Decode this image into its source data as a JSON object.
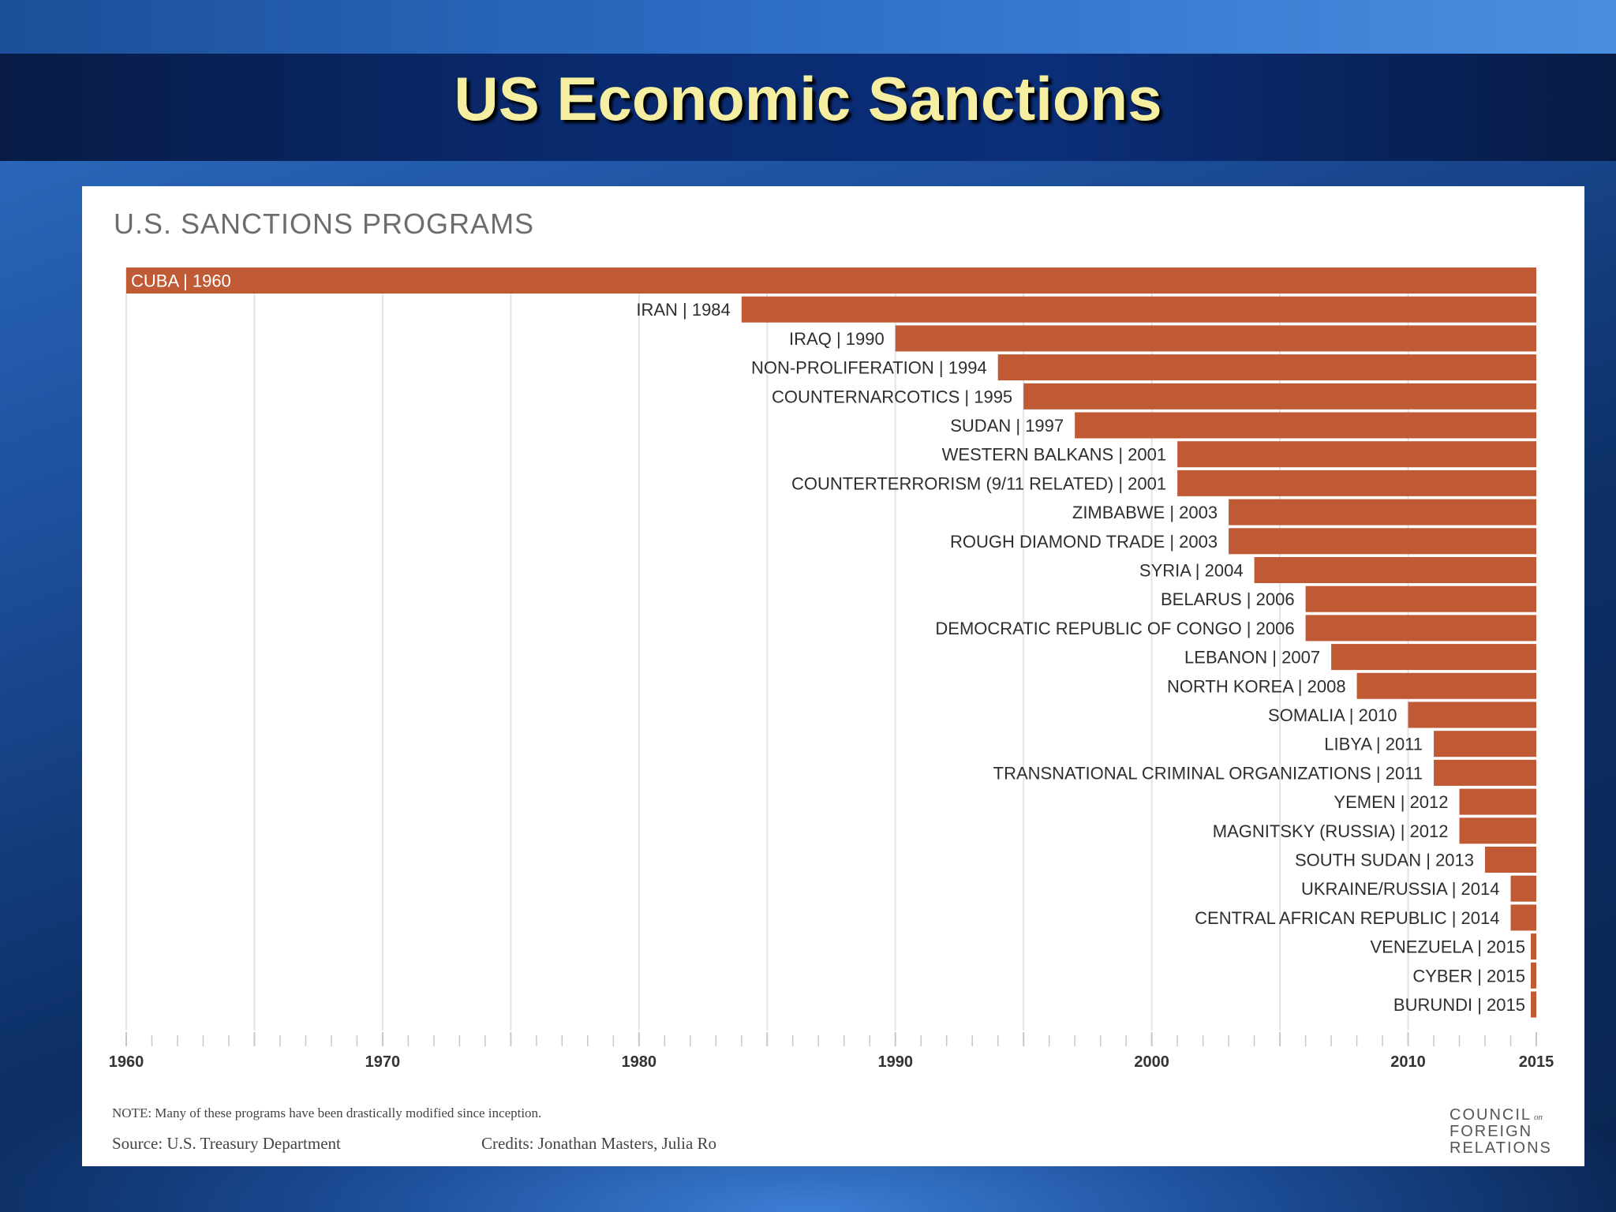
{
  "slide": {
    "title": "US Economic Sanctions"
  },
  "colors": {
    "bar": "#c05a34",
    "grid": "#e4e4e8",
    "title_text": "#f6eea1"
  },
  "chart_data": {
    "type": "bar",
    "orientation": "horizontal",
    "title": "U.S. SANCTIONS PROGRAMS",
    "xlim": [
      1960,
      2015
    ],
    "bar_end": 2015,
    "x_ticks": [
      1960,
      1970,
      1980,
      1990,
      2000,
      2010,
      2015
    ],
    "grid": true,
    "categories": [
      "CUBA | 1960",
      "IRAN | 1984",
      "IRAQ | 1990",
      "NON-PROLIFERATION | 1994",
      "COUNTERNARCOTICS | 1995",
      "SUDAN | 1997",
      "WESTERN BALKANS | 2001",
      "COUNTERTERRORISM (9/11 RELATED) | 2001",
      "ZIMBABWE | 2003",
      "ROUGH DIAMOND TRADE | 2003",
      "SYRIA | 2004",
      "BELARUS | 2006",
      "DEMOCRATIC REPUBLIC OF CONGO | 2006",
      "LEBANON | 2007",
      "NORTH KOREA | 2008",
      "SOMALIA | 2010",
      "LIBYA | 2011",
      "TRANSNATIONAL CRIMINAL ORGANIZATIONS | 2011",
      "YEMEN | 2012",
      "MAGNITSKY (RUSSIA) | 2012",
      "SOUTH SUDAN | 2013",
      "UKRAINE/RUSSIA | 2014",
      "CENTRAL AFRICAN REPUBLIC | 2014",
      "VENEZUELA | 2015",
      "CYBER | 2015",
      "BURUNDI | 2015"
    ],
    "values": [
      1960,
      1984,
      1990,
      1994,
      1995,
      1997,
      2001,
      2001,
      2003,
      2003,
      2004,
      2006,
      2006,
      2007,
      2008,
      2010,
      2011,
      2011,
      2012,
      2012,
      2013,
      2014,
      2014,
      2015,
      2015,
      2015
    ],
    "note": "NOTE: Many of these programs have been drastically modified since inception.",
    "source": "Source: U.S. Treasury Department",
    "credits": "Credits: Jonathan Masters, Julia Ro"
  },
  "logo": {
    "line1": "COUNCIL",
    "line1_small": "on",
    "line2": "FOREIGN",
    "line3": "RELATIONS"
  }
}
